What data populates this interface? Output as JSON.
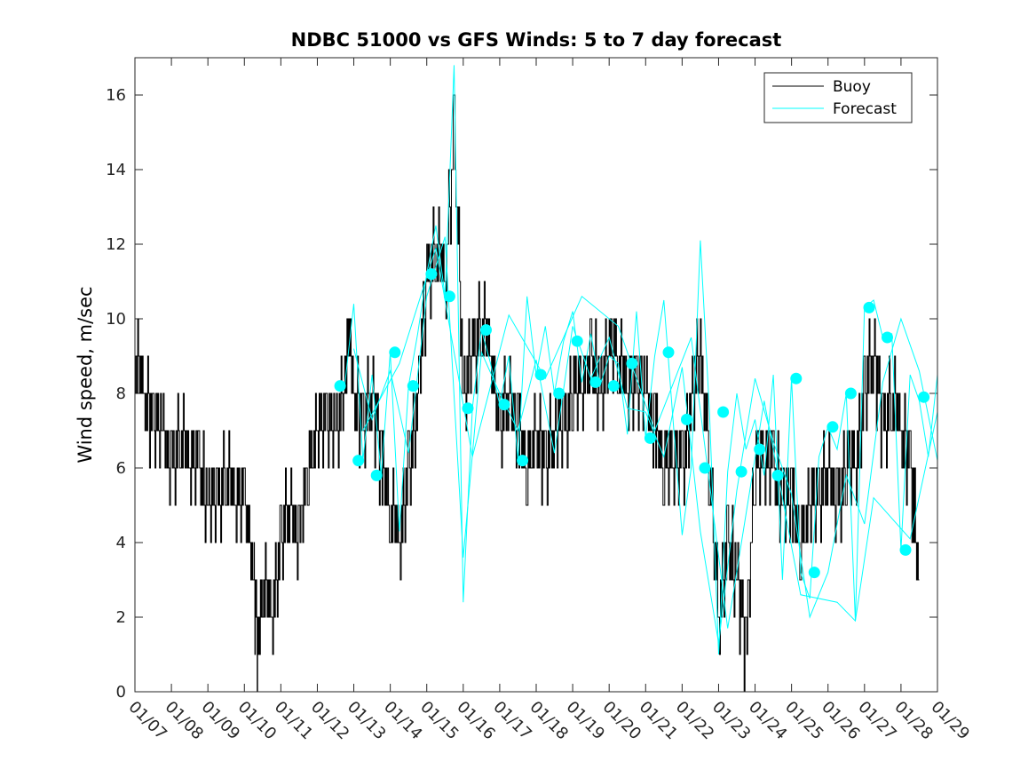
{
  "chart_data": {
    "type": "line",
    "title": "NDBC 51000 vs GFS Winds: 5 to 7 day forecast",
    "xlabel": "",
    "ylabel": "Wind speed, m/sec",
    "xlim": [
      "01/07",
      "01/29"
    ],
    "ylim": [
      0,
      17
    ],
    "x_tick_labels": [
      "01/07",
      "01/08",
      "01/09",
      "01/10",
      "01/11",
      "01/12",
      "01/13",
      "01/14",
      "01/15",
      "01/16",
      "01/17",
      "01/18",
      "01/19",
      "01/20",
      "01/21",
      "01/22",
      "01/23",
      "01/24",
      "01/25",
      "01/26",
      "01/27",
      "01/28",
      "01/29"
    ],
    "y_ticks": [
      0,
      2,
      4,
      6,
      8,
      10,
      12,
      14,
      16
    ],
    "grid": false,
    "legend": {
      "position": "top-right",
      "entries": [
        "Buoy",
        "Forecast"
      ]
    },
    "colors": {
      "buoy": "#000000",
      "forecast": "#00ffff",
      "markers": "#00ffff"
    },
    "series": [
      {
        "name": "Buoy",
        "x": [
          "01/07 00:00",
          "01/07 06:00",
          "01/07 12:00",
          "01/07 18:00",
          "01/08 00:00",
          "01/08 06:00",
          "01/08 12:00",
          "01/08 18:00",
          "01/09 00:00",
          "01/09 06:00",
          "01/09 12:00",
          "01/09 18:00",
          "01/10 00:00",
          "01/10 06:00",
          "01/10 09:00",
          "01/10 12:00",
          "01/10 18:00",
          "01/11 00:00",
          "01/11 06:00",
          "01/11 12:00",
          "01/11 18:00",
          "01/12 00:00",
          "01/12 06:00",
          "01/12 12:00",
          "01/12 18:00",
          "01/12 21:00",
          "01/13 00:00",
          "01/13 06:00",
          "01/13 12:00",
          "01/13 18:00",
          "01/14 00:00",
          "01/14 06:00",
          "01/14 12:00",
          "01/14 18:00",
          "01/15 00:00",
          "01/15 06:00",
          "01/15 12:00",
          "01/15 18:00",
          "01/16 00:00",
          "01/16 06:00",
          "01/16 12:00",
          "01/16 18:00",
          "01/17 00:00",
          "01/17 06:00",
          "01/17 12:00",
          "01/17 18:00",
          "01/18 00:00",
          "01/18 06:00",
          "01/18 12:00",
          "01/18 18:00",
          "01/19 00:00",
          "01/19 06:00",
          "01/19 12:00",
          "01/19 18:00",
          "01/20 00:00",
          "01/20 06:00",
          "01/20 12:00",
          "01/20 18:00",
          "01/21 00:00",
          "01/21 06:00",
          "01/21 12:00",
          "01/21 18:00",
          "01/22 00:00",
          "01/22 06:00",
          "01/22 12:00",
          "01/22 18:00",
          "01/23 00:00",
          "01/23 06:00",
          "01/23 12:00",
          "01/23 18:00",
          "01/24 00:00",
          "01/24 06:00",
          "01/24 12:00",
          "01/24 18:00",
          "01/25 00:00",
          "01/25 06:00",
          "01/25 12:00",
          "01/25 18:00",
          "01/26 00:00",
          "01/26 06:00",
          "01/26 12:00",
          "01/26 18:00",
          "01/27 00:00",
          "01/27 06:00",
          "01/27 12:00",
          "01/27 18:00",
          "01/28 00:00",
          "01/28 06:00",
          "01/28 12:00"
        ],
        "values": [
          9,
          8,
          7,
          7,
          6,
          7,
          6,
          6,
          5,
          5,
          6,
          5,
          5,
          3,
          1,
          3,
          2,
          4,
          5,
          4,
          6,
          7,
          7,
          7,
          8,
          10,
          8,
          7,
          8,
          6,
          5,
          4,
          6,
          8,
          11,
          12,
          11,
          15,
          8,
          9,
          10,
          9,
          7,
          8,
          7,
          6,
          7,
          6,
          7,
          7,
          8,
          8,
          9,
          8,
          9,
          9,
          8,
          8,
          8,
          7,
          6,
          6,
          6,
          8,
          9,
          6,
          2,
          4,
          3,
          1,
          6,
          6,
          6,
          5,
          5,
          4,
          5,
          5,
          6,
          5,
          6,
          6,
          8,
          9,
          7,
          8,
          7,
          6,
          3
        ]
      }
    ],
    "forecast_runs": [
      {
        "x": [
          "01/12 18:00",
          "01/13 00:00",
          "01/13 06:00",
          "01/13 12:00",
          "01/13 18:00",
          "01/14 00:00",
          "01/14 06:00",
          "01/14 12:00",
          "01/14 18:00",
          "01/15 00:00",
          "01/15 06:00",
          "01/15 12:00",
          "01/15 18:00",
          "01/16 00:00",
          "01/16 06:00",
          "01/16 12:00",
          "01/16 18:00",
          "01/17 00:00",
          "01/17 06:00",
          "01/17 12:00",
          "01/17 18:00",
          "01/18 00:00",
          "01/18 06:00",
          "01/18 12:00",
          "01/18 18:00",
          "01/19 00:00",
          "01/19 06:00",
          "01/19 12:00",
          "01/19 18:00",
          "01/20 00:00",
          "01/20 06:00",
          "01/20 12:00",
          "01/20 18:00",
          "01/21 00:00",
          "01/21 06:00",
          "01/21 12:00",
          "01/21 18:00",
          "01/22 00:00",
          "01/22 06:00",
          "01/22 12:00",
          "01/22 18:00",
          "01/23 00:00",
          "01/23 06:00",
          "01/23 12:00",
          "01/23 18:00",
          "01/24 00:00",
          "01/24 06:00",
          "01/24 12:00",
          "01/24 18:00",
          "01/25 00:00",
          "01/25 06:00",
          "01/25 12:00",
          "01/25 18:00",
          "01/26 00:00",
          "01/26 06:00",
          "01/26 12:00",
          "01/26 18:00",
          "01/27 00:00",
          "01/27 06:00",
          "01/27 12:00",
          "01/27 18:00",
          "01/28 00:00",
          "01/28 06:00",
          "01/28 12:00",
          "01/28 18:00",
          "01/29 00:00"
        ],
        "values": [
          8.2,
          10.4,
          6.2,
          8.5,
          5.8,
          9.1,
          4.3,
          8.2,
          9.6,
          11.2,
          12.5,
          10.6,
          16.8,
          2.4,
          7.6,
          9.7,
          8.8,
          7.7,
          9.0,
          6.2,
          10.6,
          8.5,
          9.8,
          8.0,
          9.4,
          10.2,
          8.3,
          9.6,
          8.2,
          9.0,
          8.8,
          6.9,
          10.2,
          6.8,
          9.0,
          10.5,
          7.3,
          4.2,
          6.0,
          12.1,
          7.5,
          1.0,
          5.9,
          8.0,
          6.5,
          7.3,
          5.8,
          8.5,
          3.0,
          8.4,
          3.2,
          2.5,
          6.3,
          7.1,
          6.5,
          8.0,
          1.9,
          10.3,
          10.5,
          9.5,
          9.6,
          3.8,
          8.5,
          7.8,
          6.3,
          8.5
        ]
      },
      {
        "x": [
          "01/13 00:00",
          "01/13 12:00",
          "01/14 00:00",
          "01/14 12:00",
          "01/15 00:00",
          "01/15 12:00",
          "01/16 00:00",
          "01/16 12:00",
          "01/17 00:00",
          "01/17 12:00",
          "01/18 00:00",
          "01/18 12:00",
          "01/19 00:00",
          "01/19 12:00",
          "01/20 00:00",
          "01/20 12:00",
          "01/21 00:00",
          "01/21 12:00",
          "01/22 00:00",
          "01/22 12:00",
          "01/23 00:00",
          "01/23 12:00",
          "01/24 00:00",
          "01/24 12:00",
          "01/25 00:00",
          "01/25 12:00",
          "01/26 00:00",
          "01/26 12:00",
          "01/27 00:00",
          "01/27 12:00",
          "01/28 00:00",
          "01/28 12:00",
          "01/29 00:00"
        ],
        "values": [
          9.2,
          7.3,
          8.6,
          6.4,
          10.6,
          12.2,
          3.6,
          9.1,
          8.0,
          7.0,
          8.9,
          6.4,
          9.8,
          8.4,
          9.5,
          7.6,
          7.5,
          6.3,
          8.7,
          4.3,
          1.3,
          5.4,
          8.4,
          6.7,
          5.3,
          2.0,
          3.2,
          5.8,
          4.5,
          8.3,
          10.0,
          8.6,
          6.2
        ]
      },
      {
        "x": [
          "01/13 06:00",
          "01/14 06:00",
          "01/15 06:00",
          "01/16 06:00",
          "01/17 06:00",
          "01/18 06:00",
          "01/19 06:00",
          "01/20 06:00",
          "01/21 06:00",
          "01/22 06:00",
          "01/23 06:00",
          "01/24 06:00",
          "01/25 06:00",
          "01/26 06:00",
          "01/26 18:00",
          "01/27 06:00",
          "01/28 06:00",
          "01/29 00:00"
        ],
        "values": [
          7.0,
          8.8,
          11.9,
          6.3,
          10.1,
          8.4,
          10.6,
          9.8,
          7.0,
          9.5,
          1.7,
          7.8,
          2.6,
          2.4,
          1.9,
          5.2,
          4.1,
          7.5
        ]
      }
    ],
    "marker_points": {
      "x": [
        "01/12 15:00",
        "01/13 03:00",
        "01/13 15:00",
        "01/14 03:00",
        "01/14 15:00",
        "01/15 03:00",
        "01/15 15:00",
        "01/16 03:00",
        "01/16 15:00",
        "01/17 03:00",
        "01/17 15:00",
        "01/18 03:00",
        "01/18 15:00",
        "01/19 03:00",
        "01/19 15:00",
        "01/20 03:00",
        "01/20 15:00",
        "01/21 03:00",
        "01/21 15:00",
        "01/22 03:00",
        "01/22 15:00",
        "01/23 03:00",
        "01/23 15:00",
        "01/24 03:00",
        "01/24 15:00",
        "01/25 03:00",
        "01/25 15:00",
        "01/26 03:00",
        "01/26 15:00",
        "01/27 03:00",
        "01/27 15:00",
        "01/28 03:00",
        "01/28 15:00"
      ],
      "values": [
        8.2,
        6.2,
        5.8,
        9.1,
        8.2,
        11.2,
        10.6,
        7.6,
        9.7,
        7.7,
        6.2,
        8.5,
        8.0,
        9.4,
        8.3,
        8.2,
        8.8,
        6.8,
        9.1,
        7.3,
        6.0,
        7.5,
        5.9,
        6.5,
        5.8,
        8.4,
        3.2,
        7.1,
        8.0,
        10.3,
        9.5,
        3.8,
        7.9
      ]
    }
  }
}
